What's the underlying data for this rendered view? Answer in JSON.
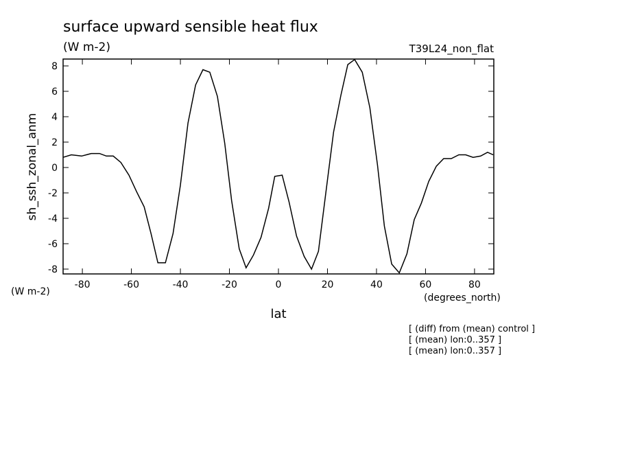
{
  "chart_data": {
    "type": "line",
    "title": "surface upward sensible heat flux",
    "subtitle": "(W m-2)",
    "experiment": "T39L24_non_flat",
    "y_label": "sh_ssh_zonal_anm",
    "y_units": "(W m-2)",
    "x_label": "lat",
    "x_units": "(degrees_north)",
    "notes": [
      "[ (diff) from (mean) control ]",
      "[ (mean) lon:0..357 ]",
      "[ (mean) lon:0..357 ]"
    ],
    "x": [
      -87.9,
      -84.5,
      -80.3,
      -76.4,
      -73.0,
      -70.2,
      -67.4,
      -64.3,
      -61.0,
      -57.9,
      -54.8,
      -52.0,
      -49.2,
      -46.1,
      -43.0,
      -40.0,
      -36.9,
      -33.8,
      -30.8,
      -28.0,
      -24.9,
      -21.9,
      -19.1,
      -16.0,
      -13.2,
      -10.2,
      -7.1,
      -4.0,
      -1.5,
      1.5,
      4.3,
      7.4,
      10.5,
      13.5,
      16.3,
      19.4,
      22.5,
      25.5,
      28.3,
      31.1,
      34.2,
      37.3,
      40.4,
      43.2,
      46.2,
      49.3,
      52.4,
      55.4,
      58.3,
      61.3,
      64.4,
      67.4,
      70.5,
      73.6,
      76.4,
      79.4,
      82.5,
      85.3,
      87.6
    ],
    "series": [
      {
        "name": "sh_ssh_zonal_anm",
        "color": "#000000",
        "values": [
          0.8,
          1.0,
          0.9,
          1.1,
          1.1,
          0.9,
          0.9,
          0.4,
          -0.6,
          -1.9,
          -3.1,
          -5.2,
          -7.5,
          -7.5,
          -5.2,
          -1.4,
          3.5,
          6.5,
          7.7,
          7.5,
          5.6,
          1.9,
          -2.6,
          -6.4,
          -7.9,
          -6.9,
          -5.5,
          -3.2,
          -0.7,
          -0.6,
          -2.7,
          -5.4,
          -7.0,
          -8.0,
          -6.6,
          -1.9,
          2.8,
          5.7,
          8.1,
          8.5,
          7.5,
          4.7,
          0.2,
          -4.6,
          -7.6,
          -8.3,
          -6.8,
          -4.1,
          -2.8,
          -1.1,
          0.1,
          0.7,
          0.7,
          1.0,
          1.0,
          0.8,
          0.9,
          1.2,
          1.0
        ]
      }
    ],
    "xlim": [
      -87.86,
      87.86
    ],
    "ylim": [
      -8.38,
      8.54
    ],
    "xticks": [
      -80,
      -60,
      -40,
      -20,
      0,
      20,
      40,
      60,
      80
    ],
    "yticks": [
      -8,
      -6,
      -4,
      -2,
      0,
      2,
      4,
      6,
      8
    ]
  }
}
